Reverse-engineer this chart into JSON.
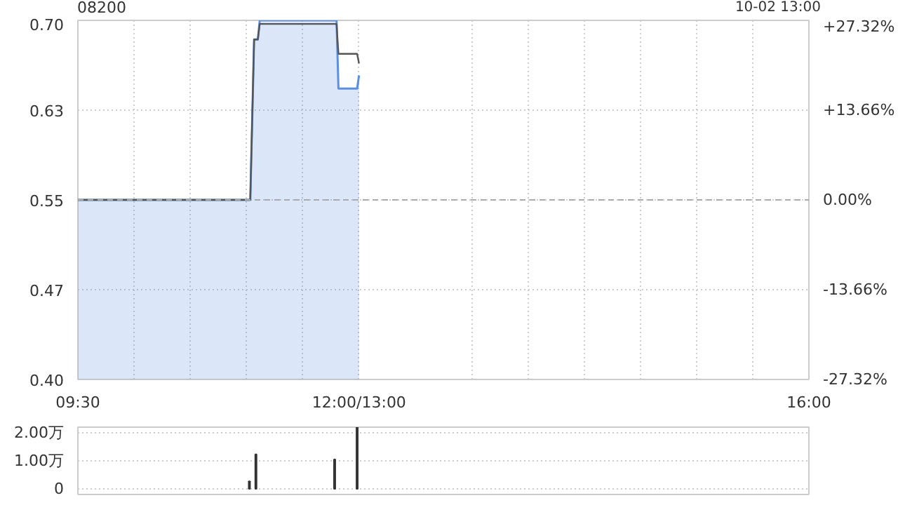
{
  "chart_data": [
    {
      "type": "line",
      "title": "08200",
      "annotations": [
        "10-02 13:00"
      ],
      "xlim": [
        9.5,
        16
      ],
      "xticks": [
        {
          "value": 9.5,
          "label": "09:30"
        },
        {
          "value": 10,
          "label": null
        },
        {
          "value": 10.5,
          "label": null
        },
        {
          "value": 11,
          "label": null
        },
        {
          "value": 11.5,
          "label": null
        },
        {
          "value": 12,
          "label": "12:00/13:00"
        },
        {
          "value": 13,
          "label": null
        },
        {
          "value": 13.5,
          "label": null
        },
        {
          "value": 14,
          "label": null
        },
        {
          "value": 14.5,
          "label": null
        },
        {
          "value": 15,
          "label": null
        },
        {
          "value": 15.5,
          "label": null
        },
        {
          "value": 16,
          "label": "16:00"
        }
      ],
      "ylim": [
        0.4,
        0.7
      ],
      "yticks": [
        {
          "value": 0.4,
          "label": "0.40"
        },
        {
          "value": 0.475,
          "label": "0.47"
        },
        {
          "value": 0.55,
          "label": "0.55"
        },
        {
          "value": 0.625,
          "label": "0.63"
        },
        {
          "value": 0.7,
          "label": "0.70"
        }
      ],
      "y2lim": [
        -27.32,
        27.32
      ],
      "y2ticks": [
        {
          "value": -27.32,
          "label": "-27.32%"
        },
        {
          "value": -13.66,
          "label": "-13.66%"
        },
        {
          "value": 0,
          "label": "0.00%"
        },
        {
          "value": 13.66,
          "label": "+13.66%"
        },
        {
          "value": 27.32,
          "label": "+27.32%"
        }
      ],
      "grid": true,
      "ref_lines": [
        {
          "axis": "y",
          "value": 0.55,
          "line_style": "dashed",
          "color": "#aaaaaa"
        }
      ],
      "series": [
        {
          "type": "area",
          "color": "#5b8fe0",
          "x": [
            9.5,
            11.033,
            11.067,
            11.1,
            11.117,
            11.8,
            11.817,
            11.983,
            12
          ],
          "values": [
            0.55,
            0.55,
            0.684,
            0.684,
            0.7,
            0.7,
            0.643,
            0.643,
            0.654
          ]
        },
        {
          "type": "line",
          "color": "#555555",
          "x": [
            9.5,
            11.033,
            11.067,
            11.1,
            11.117,
            11.8,
            11.817,
            11.983,
            12
          ],
          "values": [
            0.55,
            0.55,
            0.684,
            0.684,
            0.697,
            0.697,
            0.672,
            0.672,
            0.664
          ]
        }
      ]
    },
    {
      "type": "bar",
      "xlim": [
        9.5,
        16
      ],
      "ylim": [
        -0.2,
        2.2
      ],
      "yticks": [
        {
          "value": 0,
          "label": "0"
        },
        {
          "value": 1,
          "label": "1.00万"
        },
        {
          "value": 2,
          "label": "2.00万"
        }
      ],
      "grid": "y",
      "tick_labels": "y",
      "series": [
        {
          "color": "#333333",
          "x": [
            11.025,
            11.083,
            11.783,
            11.983
          ],
          "values": [
            0.27,
            1.23,
            1.05,
            2.2
          ]
        }
      ]
    }
  ]
}
